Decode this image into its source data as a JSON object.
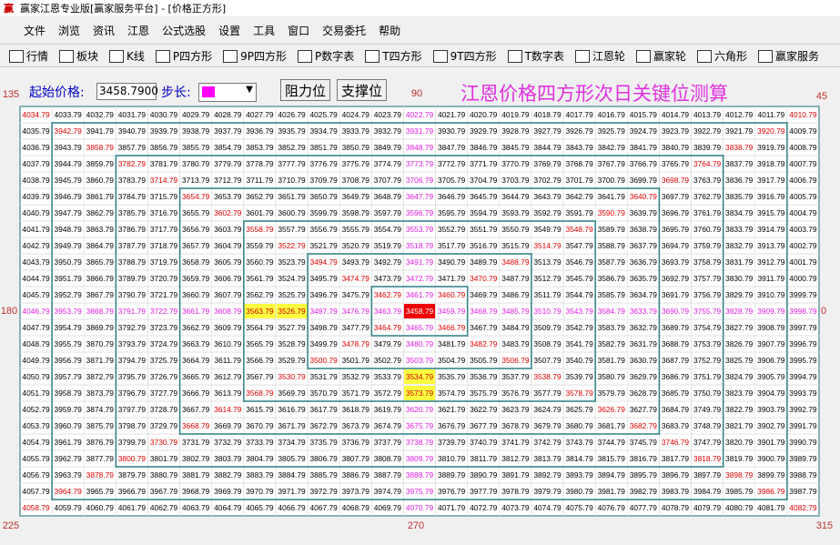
{
  "window": {
    "title": "赢家江恩专业版[赢家服务平台] - [价格正方形]"
  },
  "menu": [
    "文件",
    "浏览",
    "资讯",
    "江恩",
    "公式选股",
    "设置",
    "工具",
    "窗口",
    "交易委托",
    "帮助"
  ],
  "toolbar": [
    "行情",
    "板块",
    "K线",
    "P四方形",
    "9P四方形",
    "P数字表",
    "T四方形",
    "9T四方形",
    "T数字表",
    "江恩轮",
    "赢家轮",
    "六角形",
    "赢家服务"
  ],
  "controls": {
    "start_label": "起始价格:",
    "start_value": "3458.7900",
    "step_label": "步长:",
    "buttons": [
      "阻力位",
      "支撑位"
    ]
  },
  "heading": "江恩价格四方形次日关键位测算",
  "angles": {
    "top_left": "135",
    "top": "90",
    "top_right": "45",
    "left": "180",
    "right": "0",
    "bottom_left": "225",
    "bottom": "270",
    "bottom_right": "315"
  },
  "grid": {
    "rows": [
      [
        4034.79,
        4033.79,
        4032.79,
        4031.79,
        4030.79,
        4029.79,
        4028.79,
        4027.79,
        4026.79,
        4025.79,
        4024.79,
        4023.79,
        4022.79,
        4021.79,
        4020.79,
        4019.79,
        4018.79,
        4017.79,
        4016.79,
        4015.79,
        4014.79,
        4013.79,
        4012.79,
        4011.79,
        4010.79
      ],
      [
        4035.79,
        3942.79,
        3941.79,
        3940.79,
        3939.79,
        3938.79,
        3937.79,
        3936.79,
        3935.79,
        3934.79,
        3933.79,
        3932.79,
        3931.79,
        3930.79,
        3929.79,
        3928.79,
        3927.79,
        3926.79,
        3925.79,
        3924.79,
        3923.79,
        3922.79,
        3921.79,
        3920.79,
        4009.79
      ],
      [
        4036.79,
        3943.79,
        3858.79,
        3857.79,
        3856.79,
        3855.79,
        3854.79,
        3853.79,
        3852.79,
        3851.79,
        3850.79,
        3849.79,
        3848.79,
        3847.79,
        3846.79,
        3845.79,
        3844.79,
        3843.79,
        3842.79,
        3841.79,
        3840.79,
        3839.79,
        3838.79,
        3919.79,
        4008.79
      ],
      [
        4037.79,
        3944.79,
        3859.79,
        3782.79,
        3781.79,
        3780.79,
        3779.79,
        3778.79,
        3777.79,
        3776.79,
        3775.79,
        3774.79,
        3773.79,
        3772.79,
        3771.79,
        3770.79,
        3769.79,
        3768.79,
        3767.79,
        3766.79,
        3765.79,
        3764.79,
        3837.79,
        3918.79,
        4007.79
      ],
      [
        4038.79,
        3945.79,
        3860.79,
        3783.79,
        3714.79,
        3713.79,
        3712.79,
        3711.79,
        3710.79,
        3709.79,
        3708.79,
        3707.79,
        3706.79,
        3705.79,
        3704.79,
        3703.79,
        3702.79,
        3701.79,
        3700.79,
        3699.79,
        3698.79,
        3763.79,
        3836.79,
        3917.79,
        4006.79
      ],
      [
        4039.79,
        3946.79,
        3861.79,
        3784.79,
        3715.79,
        3654.79,
        3653.79,
        3652.79,
        3651.79,
        3650.79,
        3649.79,
        3648.79,
        3647.79,
        3646.79,
        3645.79,
        3644.79,
        3643.79,
        3642.79,
        3641.79,
        3640.79,
        3697.79,
        3762.79,
        3835.79,
        3916.79,
        4005.79
      ],
      [
        4040.79,
        3947.79,
        3862.79,
        3785.79,
        3716.79,
        3655.79,
        3602.79,
        3601.79,
        3600.79,
        3599.79,
        3598.79,
        3597.79,
        3596.79,
        3595.79,
        3594.79,
        3593.79,
        3592.79,
        3591.79,
        3590.79,
        3639.79,
        3696.79,
        3761.79,
        3834.79,
        3915.79,
        4004.79
      ],
      [
        4041.79,
        3948.79,
        3863.79,
        3786.79,
        3717.79,
        3656.79,
        3603.79,
        3558.79,
        3557.79,
        3556.79,
        3555.79,
        3554.79,
        3553.79,
        3552.79,
        3551.79,
        3550.79,
        3549.79,
        3548.79,
        3589.79,
        3638.79,
        3695.79,
        3760.79,
        3833.79,
        3914.79,
        4003.79
      ],
      [
        4042.79,
        3949.79,
        3864.79,
        3787.79,
        3718.79,
        3657.79,
        3604.79,
        3559.79,
        3522.79,
        3521.79,
        3520.79,
        3519.79,
        3518.79,
        3517.79,
        3516.79,
        3515.79,
        3514.79,
        3547.79,
        3588.79,
        3637.79,
        3694.79,
        3759.79,
        3832.79,
        3913.79,
        4002.79
      ],
      [
        4043.79,
        3950.79,
        3865.79,
        3788.79,
        3719.79,
        3658.79,
        3605.79,
        3560.79,
        3523.79,
        3494.79,
        3493.79,
        3492.79,
        3491.79,
        3490.79,
        3489.79,
        3488.79,
        3513.79,
        3546.79,
        3587.79,
        3636.79,
        3693.79,
        3758.79,
        3831.79,
        3912.79,
        4001.79
      ],
      [
        4044.79,
        3951.79,
        3866.79,
        3789.79,
        3720.79,
        3659.79,
        3606.79,
        3561.79,
        3524.79,
        3495.79,
        3474.79,
        3473.79,
        3472.79,
        3471.79,
        3470.79,
        3487.79,
        3512.79,
        3545.79,
        3586.79,
        3635.79,
        3692.79,
        3757.79,
        3830.79,
        3911.79,
        4000.79
      ],
      [
        4045.79,
        3952.79,
        3867.79,
        3790.79,
        3721.79,
        3660.79,
        3607.79,
        3562.79,
        3525.79,
        3496.79,
        3475.79,
        3462.79,
        3461.79,
        3460.79,
        3469.79,
        3486.79,
        3511.79,
        3544.79,
        3585.79,
        3634.79,
        3691.79,
        3756.79,
        3829.79,
        3910.79,
        3999.79
      ],
      [
        4046.79,
        3953.79,
        3868.79,
        3791.79,
        3722.79,
        3661.79,
        3608.79,
        3563.79,
        3526.79,
        3497.79,
        3476.79,
        3463.79,
        3458.79,
        3459.79,
        3468.79,
        3485.79,
        3510.79,
        3543.79,
        3584.79,
        3633.79,
        3690.79,
        3755.79,
        3828.79,
        3909.79,
        3998.79
      ],
      [
        4047.79,
        3954.79,
        3869.79,
        3792.79,
        3723.79,
        3662.79,
        3609.79,
        3564.79,
        3527.79,
        3498.79,
        3477.79,
        3464.79,
        3465.79,
        3466.79,
        3467.79,
        3484.79,
        3509.79,
        3542.79,
        3583.79,
        3632.79,
        3689.79,
        3754.79,
        3827.79,
        3908.79,
        3997.79
      ],
      [
        4048.79,
        3955.79,
        3870.79,
        3793.79,
        3724.79,
        3663.79,
        3610.79,
        3565.79,
        3528.79,
        3499.79,
        3478.79,
        3479.79,
        3480.79,
        3481.79,
        3482.79,
        3483.79,
        3508.79,
        3541.79,
        3582.79,
        3631.79,
        3688.79,
        3753.79,
        3826.79,
        3907.79,
        3996.79
      ],
      [
        4049.79,
        3956.79,
        3871.79,
        3794.79,
        3725.79,
        3664.79,
        3611.79,
        3566.79,
        3529.79,
        3500.79,
        3501.79,
        3502.79,
        3503.79,
        3504.79,
        3505.79,
        3506.79,
        3507.79,
        3540.79,
        3581.79,
        3630.79,
        3687.79,
        3752.79,
        3825.79,
        3906.79,
        3995.79
      ],
      [
        4050.79,
        3957.79,
        3872.79,
        3795.79,
        3726.79,
        3665.79,
        3612.79,
        3567.79,
        3530.79,
        3531.79,
        3532.79,
        3533.79,
        3534.79,
        3535.79,
        3536.79,
        3537.79,
        3538.79,
        3539.79,
        3580.79,
        3629.79,
        3686.79,
        3751.79,
        3824.79,
        3905.79,
        3994.79
      ],
      [
        4051.79,
        3958.79,
        3873.79,
        3796.79,
        3727.79,
        3666.79,
        3613.79,
        3568.79,
        3569.79,
        3570.79,
        3571.79,
        3572.79,
        3573.79,
        3574.79,
        3575.79,
        3576.79,
        3577.79,
        3578.79,
        3579.79,
        3628.79,
        3685.79,
        3750.79,
        3823.79,
        3904.79,
        3993.79
      ],
      [
        4052.79,
        3959.79,
        3874.79,
        3797.79,
        3728.79,
        3667.79,
        3614.79,
        3615.79,
        3616.79,
        3617.79,
        3618.79,
        3619.79,
        3620.79,
        3621.79,
        3622.79,
        3623.79,
        3624.79,
        3625.79,
        3626.79,
        3627.79,
        3684.79,
        3749.79,
        3822.79,
        3903.79,
        3992.79
      ],
      [
        4053.79,
        3960.79,
        3875.79,
        3798.79,
        3729.79,
        3668.79,
        3669.79,
        3670.79,
        3671.79,
        3672.79,
        3673.79,
        3674.79,
        3675.79,
        3676.79,
        3677.79,
        3678.79,
        3679.79,
        3680.79,
        3681.79,
        3682.79,
        3683.79,
        3748.79,
        3821.79,
        3902.79,
        3991.79
      ],
      [
        4054.79,
        3961.79,
        3876.79,
        3799.79,
        3730.79,
        3731.79,
        3732.79,
        3733.79,
        3734.79,
        3735.79,
        3736.79,
        3737.79,
        3738.79,
        3739.79,
        3740.79,
        3741.79,
        3742.79,
        3743.79,
        3744.79,
        3745.79,
        3746.79,
        3747.79,
        3820.79,
        3901.79,
        3990.79
      ],
      [
        4055.79,
        3962.79,
        3877.79,
        3800.79,
        3801.79,
        3802.79,
        3803.79,
        3804.79,
        3805.79,
        3806.79,
        3807.79,
        3808.79,
        3809.79,
        3810.79,
        3811.79,
        3812.79,
        3813.79,
        3814.79,
        3815.79,
        3816.79,
        3817.79,
        3818.79,
        3819.79,
        3900.79,
        3989.79
      ],
      [
        4056.79,
        3963.79,
        3878.79,
        3879.79,
        3880.79,
        3881.79,
        3882.79,
        3883.79,
        3884.79,
        3885.79,
        3886.79,
        3887.79,
        3888.79,
        3889.79,
        3890.79,
        3891.79,
        3892.79,
        3893.79,
        3894.79,
        3895.79,
        3896.79,
        3897.79,
        3898.79,
        3899.79,
        3988.79
      ],
      [
        4057.79,
        3964.79,
        3965.79,
        3966.79,
        3967.79,
        3968.79,
        3969.79,
        3970.79,
        3971.79,
        3972.79,
        3973.79,
        3974.79,
        3975.79,
        3976.79,
        3977.79,
        3978.79,
        3979.79,
        3980.79,
        3981.79,
        3982.79,
        3983.79,
        3984.79,
        3985.79,
        3986.79,
        3987.79
      ],
      [
        4058.79,
        4059.79,
        4060.79,
        4061.79,
        4062.79,
        4063.79,
        4064.79,
        4065.79,
        4066.79,
        4067.79,
        4068.79,
        4069.79,
        4070.79,
        4071.79,
        4072.79,
        4073.79,
        4074.79,
        4075.79,
        4076.79,
        4077.79,
        4078.79,
        4079.79,
        4080.79,
        4081.79,
        4082.79
      ]
    ]
  }
}
